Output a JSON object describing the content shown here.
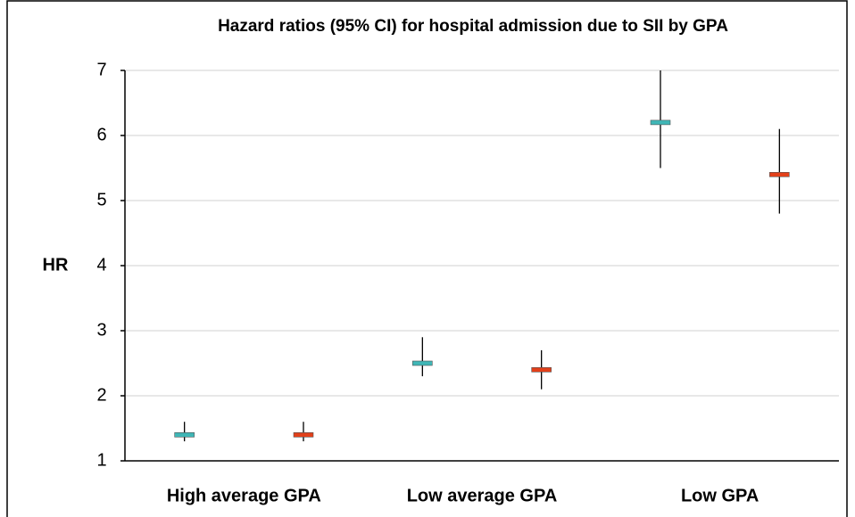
{
  "chart_data": {
    "type": "errorbar",
    "title": "Hazard ratios (95% CI) for hospital admission due to SII by GPA",
    "y_label": "HR",
    "categories": [
      "High average GPA",
      "Low average GPA",
      "Low GPA"
    ],
    "series": [
      {
        "color": "#3fb6b6",
        "values": [
          1.4,
          2.5,
          6.2
        ],
        "low": [
          1.3,
          2.3,
          5.5
        ],
        "high": [
          1.6,
          2.9,
          7.0
        ]
      },
      {
        "color": "#e2401a",
        "values": [
          1.4,
          2.4,
          5.4
        ],
        "low": [
          1.3,
          2.1,
          4.8
        ],
        "high": [
          1.6,
          2.7,
          6.1
        ]
      }
    ],
    "ylim": [
      1,
      7
    ],
    "yticks": [
      1,
      2,
      3,
      4,
      5,
      6,
      7
    ],
    "grid": true
  }
}
